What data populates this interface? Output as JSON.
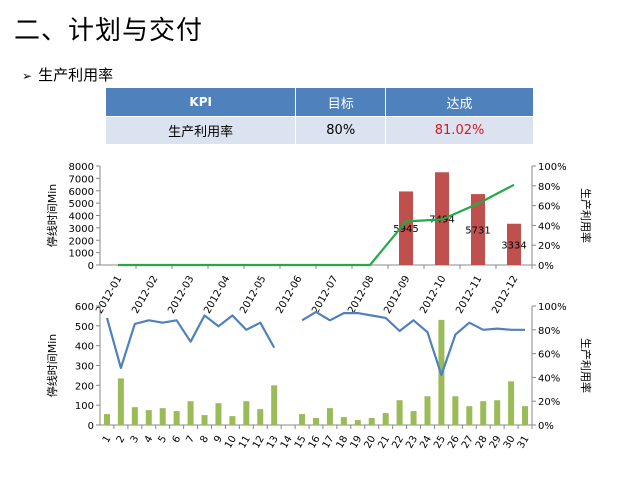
{
  "page": {
    "title": "二、计划与交付",
    "subtitle": "生产利用率",
    "subtitle_bullet": "➢"
  },
  "kpi_table": {
    "headers": [
      "KPI",
      "目标",
      "达成"
    ],
    "row": {
      "name": "生产利用率",
      "target": "80%",
      "actual": "81.02%"
    },
    "header_color": "#4f81bd",
    "actual_color": "#e0161f"
  },
  "chart_data": [
    {
      "type": "bar",
      "categories": [
        "2012-01",
        "2012-02",
        "2012-03",
        "2012-04",
        "2012-05",
        "2012-06",
        "2012-07",
        "2012-08",
        "2012-09",
        "2012-10",
        "2012-11",
        "2012-12"
      ],
      "series": [
        {
          "values": [
            0,
            0,
            0,
            0,
            0,
            0,
            0,
            0,
            5945,
            7494,
            5731,
            3334
          ],
          "color": "#c0504d",
          "axis": "left",
          "labels": [
            "",
            "",
            "",
            "",
            "",
            "",
            "",
            "",
            "5945",
            "7494",
            "5731",
            "3334"
          ]
        },
        {
          "type": "line",
          "values": [
            0,
            0,
            0,
            0,
            0,
            0,
            0,
            0,
            44,
            46,
            62,
            81
          ],
          "color": "#22aa44",
          "axis": "right"
        }
      ],
      "ylabel": "停线时间Min",
      "y2label": "生产利用率",
      "ylim": [
        0,
        8000
      ],
      "yticks": [
        "0",
        "1000",
        "2000",
        "3000",
        "4000",
        "5000",
        "6000",
        "7000",
        "8000"
      ],
      "y2lim": [
        0,
        100
      ],
      "y2ticks": [
        "0%",
        "20%",
        "40%",
        "60%",
        "80%",
        "100%"
      ]
    },
    {
      "type": "bar",
      "categories": [
        "1",
        "2",
        "3",
        "4",
        "5",
        "6",
        "7",
        "8",
        "9",
        "10",
        "11",
        "12",
        "13",
        "14",
        "15",
        "16",
        "17",
        "18",
        "19",
        "20",
        "21",
        "22",
        "23",
        "24",
        "25",
        "26",
        "27",
        "28",
        "29",
        "30",
        "31"
      ],
      "series": [
        {
          "values": [
            55,
            235,
            90,
            75,
            85,
            70,
            120,
            50,
            110,
            45,
            120,
            80,
            200,
            0,
            55,
            35,
            85,
            40,
            25,
            35,
            60,
            125,
            70,
            145,
            530,
            145,
            95,
            120,
            125,
            220,
            95
          ],
          "color": "#9bbb59",
          "axis": "left"
        },
        {
          "type": "line",
          "values": [
            90,
            48,
            85,
            88,
            86,
            88,
            70,
            92,
            83,
            92,
            80,
            86,
            65,
            null,
            88,
            95,
            88,
            94,
            94,
            92,
            90,
            79,
            88,
            78,
            42,
            76,
            86,
            80,
            81,
            80,
            80
          ],
          "color": "#4f81bd",
          "axis": "right"
        }
      ],
      "ylabel": "停线时间Min",
      "y2label": "生产利用率",
      "ylim": [
        0,
        600
      ],
      "yticks": [
        "0",
        "100",
        "200",
        "300",
        "400",
        "500",
        "600"
      ],
      "y2lim": [
        0,
        100
      ],
      "y2ticks": [
        "0%",
        "20%",
        "40%",
        "60%",
        "80%",
        "100%"
      ]
    }
  ]
}
